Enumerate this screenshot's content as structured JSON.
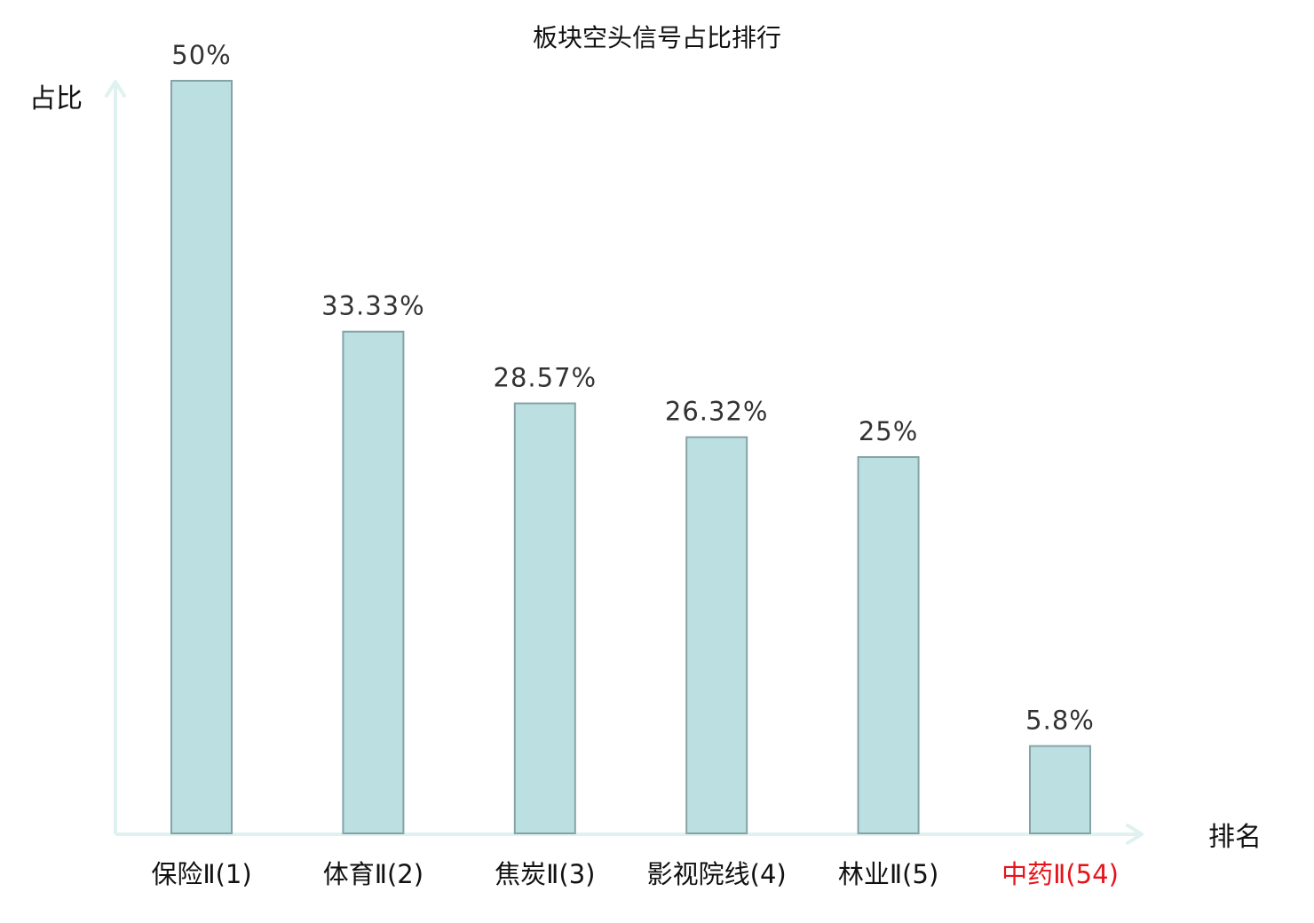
{
  "chart_data": {
    "type": "bar",
    "title": "板块空头信号占比排行",
    "ylabel": "占比",
    "xlabel": "排名",
    "categories": [
      "保险Ⅱ(1)",
      "体育Ⅱ(2)",
      "焦炭Ⅱ(3)",
      "影视院线(4)",
      "林业Ⅱ(5)",
      "中药Ⅱ(54)"
    ],
    "values": [
      50,
      33.33,
      28.57,
      26.32,
      25,
      5.8
    ],
    "value_labels": [
      "50%",
      "33.33%",
      "28.57%",
      "26.32%",
      "25%",
      "5.8%"
    ],
    "highlight_index": 5,
    "ylim": [
      0,
      50
    ],
    "grid": false,
    "legend": "none",
    "colors": {
      "bar_fill": "#bce0e2",
      "bar_stroke": "#85a3a6",
      "axis": "#dff2ef",
      "text": "#111111",
      "value_text": "#333333",
      "highlight_text": "#e8131a"
    }
  }
}
